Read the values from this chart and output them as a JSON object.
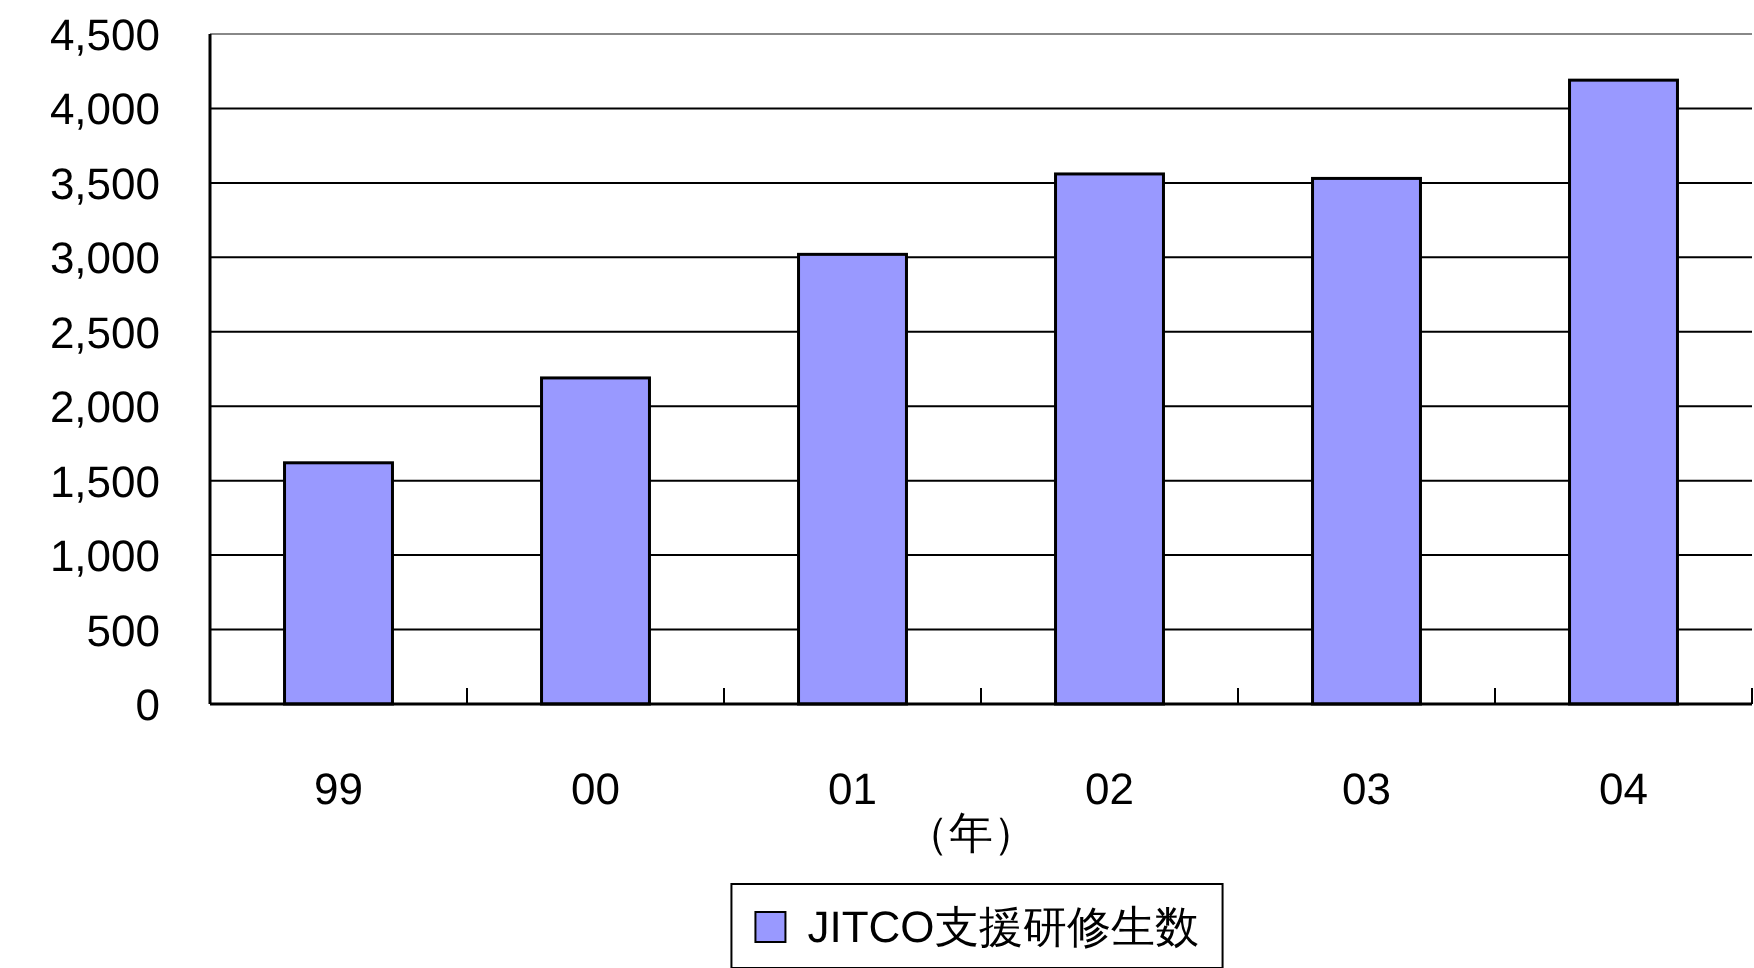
{
  "chart_data": {
    "type": "bar",
    "xlabel": "（年）",
    "categories": [
      "99",
      "00",
      "01",
      "02",
      "03",
      "04"
    ],
    "series": [
      {
        "name": "JITCO支援研修生数",
        "color": "#9999ff",
        "values": [
          1620,
          2190,
          3020,
          3560,
          3530,
          4190
        ]
      }
    ],
    "ylim": [
      0,
      4500
    ],
    "yticks": [
      0,
      500,
      {
        "value": 1000,
        "label": "1,000"
      },
      {
        "value": 1500,
        "label": "1,500"
      },
      {
        "value": 2000,
        "label": "2,000"
      },
      {
        "value": 2500,
        "label": "2,500"
      },
      {
        "value": 3000,
        "label": "3,000"
      },
      {
        "value": 3500,
        "label": "3,500"
      },
      {
        "value": 4000,
        "label": "4,000"
      },
      {
        "value": 4500,
        "label": "4,500"
      }
    ],
    "grid": "y",
    "legend": "bottom"
  }
}
